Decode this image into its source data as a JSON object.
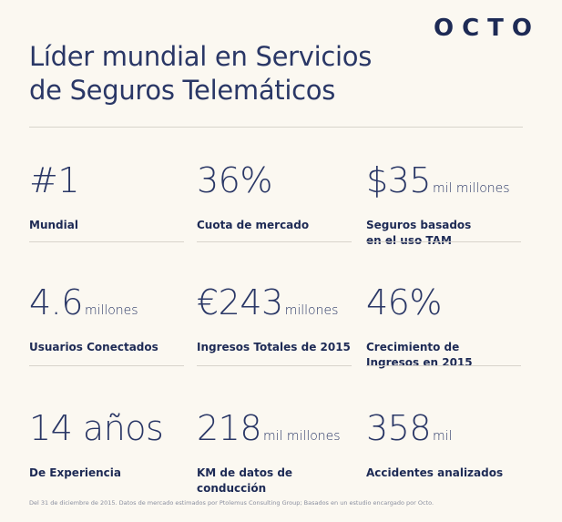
{
  "brand": {
    "logo_text": "OCTO"
  },
  "header": {
    "title_line1": "Líder mundial en Servicios",
    "title_line2": "de Seguros Telemáticos"
  },
  "stats": [
    {
      "value": "#1",
      "unit": "",
      "label_line1": "Mundial",
      "label_line2": ""
    },
    {
      "value": "36%",
      "unit": "",
      "label_line1": "Cuota de mercado",
      "label_line2": ""
    },
    {
      "value": "$35",
      "unit": "mil millones",
      "label_line1": "Seguros basados",
      "label_line2": "en el uso TAM"
    },
    {
      "value": "4.6",
      "unit": "millones",
      "label_line1": "Usuarios Conectados",
      "label_line2": ""
    },
    {
      "value": "€243",
      "unit": "millones",
      "label_line1": "Ingresos Totales de 2015",
      "label_line2": ""
    },
    {
      "value": "46%",
      "unit": "",
      "label_line1": "Crecimiento de",
      "label_line2": "Ingresos en 2015"
    },
    {
      "value": "14 años",
      "unit": "",
      "label_line1": "De Experiencia",
      "label_line2": ""
    },
    {
      "value": "218",
      "unit": "mil millones",
      "label_line1": "KM de datos de",
      "label_line2": "conducción"
    },
    {
      "value": "358",
      "unit": "mil",
      "label_line1": "Accidentes analizados",
      "label_line2": ""
    }
  ],
  "footnote": "Del 31 de diciembre de 2015. Datos de mercado estimados por Ptolemus Consulting Group; Basados en un estudio encargado por Octo."
}
